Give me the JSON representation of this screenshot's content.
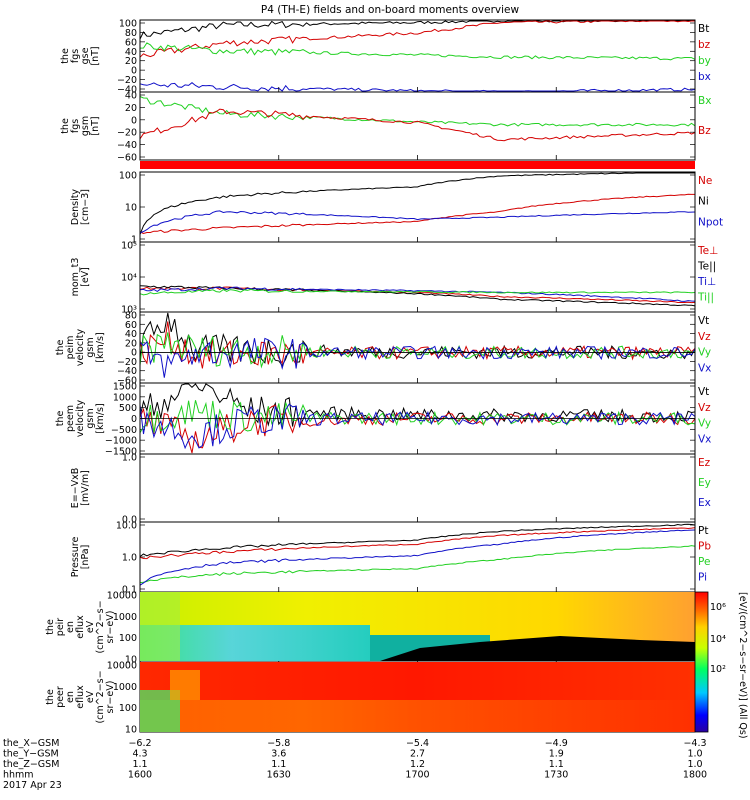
{
  "title": "P4 (TH-E) fields and on-board moments overview",
  "colors": {
    "black": "#000000",
    "red": "#d40000",
    "green": "#22d022",
    "blue": "#1010c8"
  },
  "panels": [
    {
      "ylabel": [
        "the",
        "fgs",
        "gse",
        "[nT]"
      ],
      "ticks": [
        "100",
        "80",
        "60",
        "40",
        "20",
        "0",
        "−20",
        "−40"
      ],
      "legend": [
        {
          "text": "Bt",
          "color": "black"
        },
        {
          "text": "bz",
          "color": "red"
        },
        {
          "text": "by",
          "color": "green"
        },
        {
          "text": "bx",
          "color": "blue"
        }
      ]
    },
    {
      "ylabel": [
        "the",
        "fgs",
        "gsm",
        "[nT]"
      ],
      "ticks": [
        "40",
        "20",
        "0",
        "−20",
        "−40",
        "−60"
      ],
      "legend": [
        {
          "text": "Bx",
          "color": "green"
        },
        {
          "text": "Bz",
          "color": "red"
        }
      ]
    },
    {
      "ylabel": [
        "Density",
        "[cm−3]"
      ],
      "ticks": [
        "100",
        "10",
        "1"
      ],
      "legend": [
        {
          "text": "Ne",
          "color": "red"
        },
        {
          "text": "Ni",
          "color": "black"
        },
        {
          "text": "Npot",
          "color": "blue"
        }
      ]
    },
    {
      "ylabel": [
        "mom_t3",
        "[eV]"
      ],
      "ticks": [
        "10⁵",
        "10⁴",
        "10³"
      ],
      "legend": [
        {
          "text": "Te⊥",
          "color": "red"
        },
        {
          "text": "Te||",
          "color": "black"
        },
        {
          "text": "Ti⊥",
          "color": "blue"
        },
        {
          "text": "Ti||",
          "color": "green"
        }
      ]
    },
    {
      "ylabel": [
        "the",
        "peim",
        "velocity",
        "gsm",
        "[km/s]"
      ],
      "ticks": [
        "80",
        "60",
        "40",
        "20",
        "0",
        "−20",
        "−40",
        "−60"
      ],
      "legend": [
        {
          "text": "Vt",
          "color": "black"
        },
        {
          "text": "Vz",
          "color": "red"
        },
        {
          "text": "Vy",
          "color": "green"
        },
        {
          "text": "Vx",
          "color": "blue"
        }
      ]
    },
    {
      "ylabel": [
        "the",
        "peem",
        "velocity",
        "gsm",
        "[km/s]"
      ],
      "ticks": [
        "1500",
        "1000",
        "500",
        "0",
        "−500",
        "−1000",
        "−1500"
      ],
      "legend": [
        {
          "text": "Vt",
          "color": "black"
        },
        {
          "text": "Vz",
          "color": "red"
        },
        {
          "text": "Vy",
          "color": "green"
        },
        {
          "text": "Vx",
          "color": "blue"
        }
      ]
    },
    {
      "ylabel": [
        "E=−VxB",
        "[mV/m]"
      ],
      "ticks": [
        "1.0",
        "0.0"
      ],
      "legend": [
        {
          "text": "Ez",
          "color": "red"
        },
        {
          "text": "Ey",
          "color": "green"
        },
        {
          "text": "Ex",
          "color": "blue"
        }
      ]
    },
    {
      "ylabel": [
        "Pressure",
        "[nPa]"
      ],
      "ticks": [
        "10.0",
        "1.0",
        "0.1"
      ],
      "legend": [
        {
          "text": "Pt",
          "color": "black"
        },
        {
          "text": "Pb",
          "color": "red"
        },
        {
          "text": "Pe",
          "color": "green"
        },
        {
          "text": "Pi",
          "color": "blue"
        }
      ]
    },
    {
      "ylabel": [
        "the",
        "peir",
        "en",
        "eflux",
        "eV",
        "(cm^2−s−",
        "sr−eV)"
      ],
      "ticks": [
        "10000",
        "1000",
        "100",
        "10"
      ]
    },
    {
      "ylabel": [
        "the",
        "peer",
        "en",
        "eflux",
        "eV",
        "(cm^2−s−",
        "sr−eV)"
      ],
      "ticks": [
        "10000",
        "1000",
        "100",
        "10"
      ]
    }
  ],
  "colorbar": {
    "label": "[eV/(cm^2−s−sr−eV)] (All Qs)",
    "ticks": [
      "10⁶",
      "10⁴",
      "10²"
    ]
  },
  "xaxis": {
    "row_labels": [
      "the_X−GSM",
      "the_Y−GSM",
      "the_Z−GSM",
      "hhmm"
    ],
    "date": "2017 Apr 23",
    "columns": [
      [
        "−6.2",
        "4.3",
        "1.1",
        "1600"
      ],
      [
        "−5.8",
        "3.6",
        "1.1",
        "1630"
      ],
      [
        "−5.4",
        "2.7",
        "1.2",
        "1700"
      ],
      [
        "−4.9",
        "1.9",
        "1.1",
        "1730"
      ],
      [
        "−4.3",
        "1.0",
        "1.0",
        "1800"
      ]
    ]
  },
  "chart_data": [
    {
      "type": "line",
      "x": [
        1600,
        1630,
        1700,
        1730,
        1800
      ],
      "ylim": [
        -40,
        100
      ],
      "series": [
        {
          "name": "Bt",
          "values": [
            70,
            90,
            95,
            99,
            100
          ]
        },
        {
          "name": "bz",
          "values": [
            30,
            55,
            75,
            95,
            100
          ]
        },
        {
          "name": "by",
          "values": [
            50,
            40,
            32,
            28,
            25
          ]
        },
        {
          "name": "bx",
          "values": [
            -25,
            -30,
            -38,
            -40,
            -35
          ]
        }
      ]
    },
    {
      "type": "line",
      "x": [
        1600,
        1630,
        1700,
        1730,
        1800
      ],
      "ylim": [
        -60,
        40
      ],
      "series": [
        {
          "name": "Bx",
          "values": [
            30,
            8,
            -4,
            -8,
            -8
          ]
        },
        {
          "name": "Bz",
          "values": [
            -25,
            12,
            -5,
            -30,
            -20
          ]
        }
      ]
    },
    {
      "type": "line",
      "x": [
        1600,
        1630,
        1700,
        1730,
        1800
      ],
      "ylim": [
        0.3,
        200
      ],
      "scale": "log",
      "series": [
        {
          "name": "Ne",
          "values": [
            0.7,
            1.1,
            2,
            5,
            25
          ]
        },
        {
          "name": "Ni",
          "values": [
            0.6,
            20,
            50,
            140,
            200
          ]
        },
        {
          "name": "Npot",
          "values": [
            0.7,
            5,
            2.5,
            3,
            5
          ]
        }
      ]
    },
    {
      "type": "line",
      "x": [
        1600,
        1630,
        1700,
        1730,
        1800
      ],
      "ylim": [
        500,
        100000
      ],
      "scale": "log",
      "series": [
        {
          "name": "Te⊥",
          "values": [
            3000,
            3000,
            2200,
            1600,
            1000
          ]
        },
        {
          "name": "Te||",
          "values": [
            3500,
            3000,
            2000,
            1300,
            800
          ]
        },
        {
          "name": "Ti⊥",
          "values": [
            2500,
            3000,
            2500,
            2200,
            1100
          ]
        },
        {
          "name": "Ti||",
          "values": [
            2000,
            2500,
            2300,
            2200,
            2200
          ]
        }
      ]
    },
    {
      "type": "line",
      "x": [
        1600,
        1610,
        1620,
        1700,
        1800
      ],
      "ylim": [
        -60,
        80
      ],
      "series": [
        {
          "name": "Vt",
          "values": [
            10,
            70,
            5,
            1,
            0
          ]
        },
        {
          "name": "Vz",
          "values": [
            0,
            30,
            -5,
            0,
            0
          ]
        },
        {
          "name": "Vy",
          "values": [
            0,
            20,
            5,
            0,
            0
          ]
        },
        {
          "name": "Vx",
          "values": [
            0,
            -25,
            0,
            0,
            0
          ]
        }
      ]
    },
    {
      "type": "line",
      "x": [
        1600,
        1620,
        1640,
        1700,
        1800
      ],
      "ylim": [
        -1500,
        1500
      ],
      "series": [
        {
          "name": "Vt",
          "values": [
            200,
            1500,
            300,
            150,
            100
          ]
        },
        {
          "name": "Vz",
          "values": [
            0,
            -900,
            -100,
            0,
            0
          ]
        },
        {
          "name": "Vy",
          "values": [
            0,
            300,
            50,
            0,
            0
          ]
        },
        {
          "name": "Vx",
          "values": [
            0,
            -700,
            -50,
            0,
            0
          ]
        }
      ]
    },
    {
      "type": "line",
      "x": [
        1600,
        1800
      ],
      "ylim": [
        0,
        1
      ],
      "series": []
    },
    {
      "type": "line",
      "x": [
        1600,
        1630,
        1700,
        1730,
        1800
      ],
      "ylim": [
        0.1,
        50
      ],
      "scale": "log",
      "series": [
        {
          "name": "Pt",
          "values": [
            2.5,
            5,
            10,
            22,
            40
          ]
        },
        {
          "name": "Pb",
          "values": [
            2,
            3.5,
            7,
            15,
            30
          ]
        },
        {
          "name": "Pe",
          "values": [
            0.25,
            0.5,
            0.8,
            1.8,
            6
          ]
        },
        {
          "name": "Pi",
          "values": [
            0.2,
            1.3,
            2.5,
            7,
            25
          ]
        }
      ]
    },
    {
      "type": "heatmap",
      "x": [
        1600,
        1800
      ],
      "ylim": [
        5,
        20000
      ],
      "scale": "log",
      "colorbar": [
        10,
        10000000
      ]
    },
    {
      "type": "heatmap",
      "x": [
        1600,
        1800
      ],
      "ylim": [
        5,
        20000
      ],
      "scale": "log",
      "colorbar": [
        10,
        10000000
      ]
    }
  ]
}
